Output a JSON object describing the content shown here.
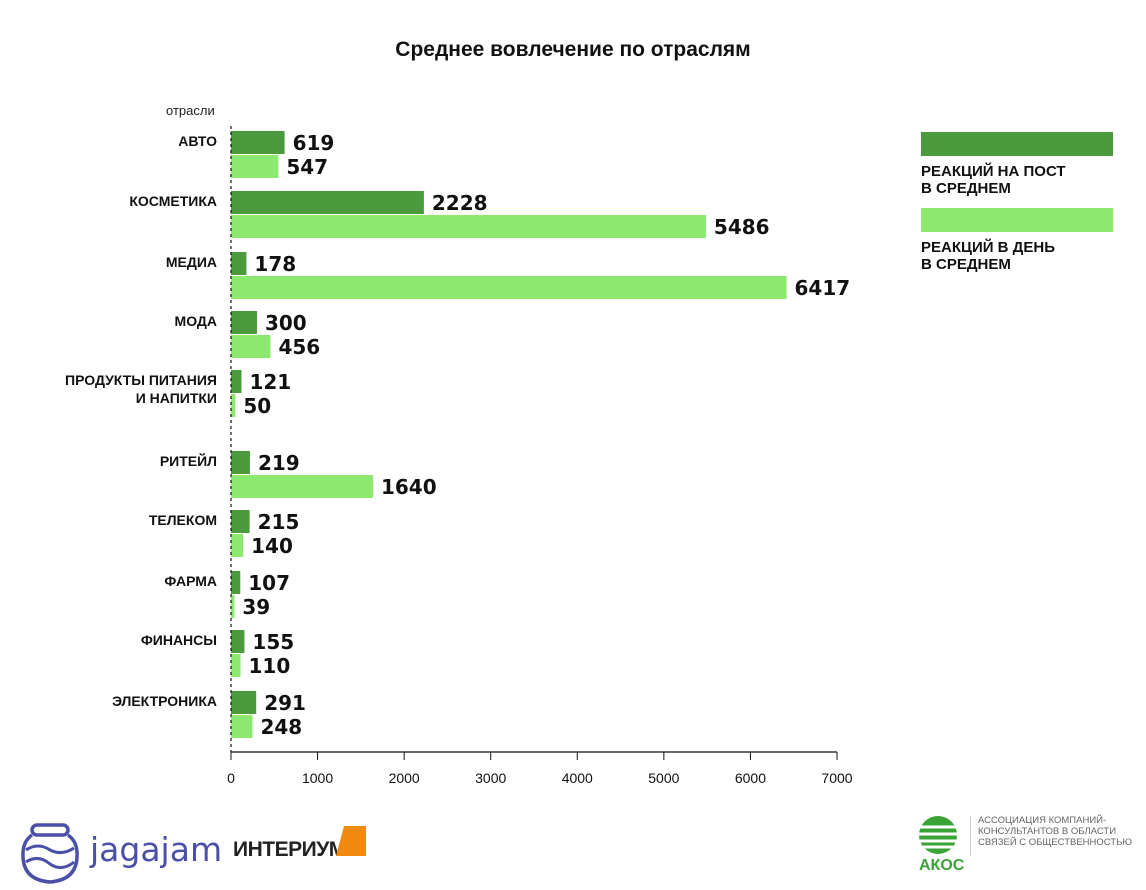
{
  "chart_data": {
    "type": "bar",
    "orientation": "horizontal",
    "title": "Среднее вовлечение по отраслям",
    "ylabel": "отрасли",
    "xlabel": "",
    "xlim": [
      0,
      7000
    ],
    "xticks": [
      "0",
      "1000",
      "2000",
      "3000",
      "4000",
      "5000",
      "6000",
      "7000"
    ],
    "grid": false,
    "legend_placement": "right",
    "categories": [
      "АВТО",
      "КОСМЕТИКА",
      "МЕДИА",
      "МОДА",
      "ПРОДУКТЫ ПИТАНИЯ\nИ НАПИТКИ",
      "РИТЕЙЛ",
      "ТЕЛЕКОМ",
      "ФАРМА",
      "ФИНАНСЫ",
      "ЭЛЕКТРОНИКА"
    ],
    "series": [
      {
        "name": "РЕАКЦИЙ НА ПОСТ\nВ СРЕДНЕМ",
        "color": "#4c9a3e",
        "values": [
          619,
          2228,
          178,
          300,
          121,
          219,
          215,
          107,
          155,
          291
        ]
      },
      {
        "name": "РЕАКЦИЙ В ДЕНЬ\nВ СРЕДНЕМ",
        "color": "#8de86f",
        "values": [
          547,
          5486,
          6417,
          456,
          50,
          1640,
          140,
          39,
          110,
          248
        ]
      }
    ]
  },
  "logos": {
    "jagajam": "jagajam",
    "interium": "ИНТЕРИУМ",
    "akos": "АКОС",
    "akos_text": "АССОЦИАЦИЯ КОМПАНИЙ-КОНСУЛЬТАНТОВ В ОБЛАСТИ СВЯЗЕЙ С ОБЩЕСТВЕННОСТЬЮ"
  }
}
